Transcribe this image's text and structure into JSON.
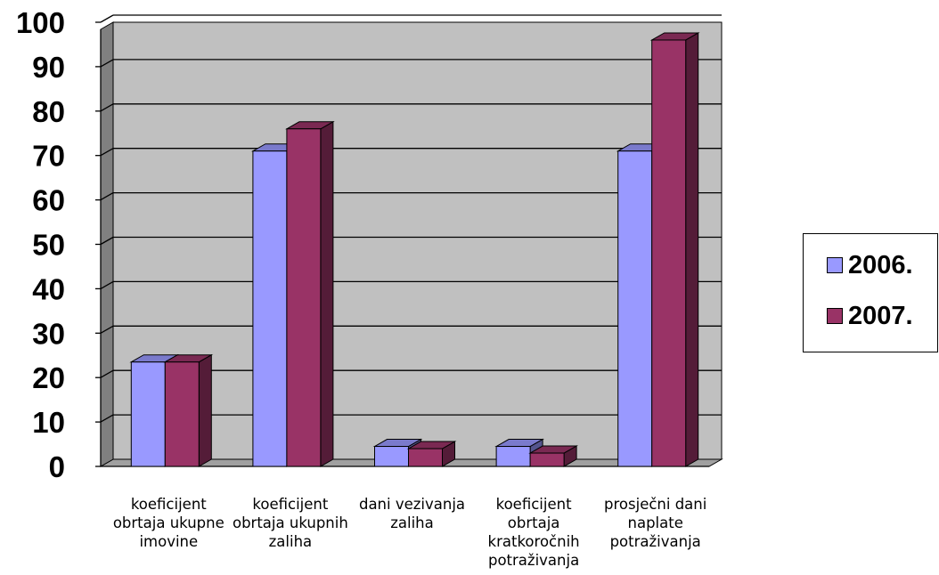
{
  "chart_data": {
    "type": "bar",
    "categories": [
      [
        "koeficijent",
        "obrtaja ukupne",
        "imovine"
      ],
      [
        "koeficijent",
        "obrtaja ukupnih",
        "zaliha"
      ],
      [
        "dani vezivanja",
        "zaliha"
      ],
      [
        "koeficijent",
        "obrtaja",
        "kratkoročnih",
        "potraživanja"
      ],
      [
        "prosječni dani",
        "naplate",
        "potraživanja"
      ]
    ],
    "series": [
      {
        "name": "2006.",
        "color": "#9999ff",
        "values": [
          23.5,
          71,
          4.5,
          4.5,
          71
        ]
      },
      {
        "name": "2007.",
        "color": "#993366",
        "values": [
          23.5,
          76,
          4,
          3,
          96
        ]
      }
    ],
    "yticks": [
      "0",
      "10",
      "20",
      "30",
      "40",
      "50",
      "60",
      "70",
      "80",
      "90",
      "100"
    ],
    "ylim": [
      0,
      100
    ],
    "grid": true,
    "plot_background": "#c0c0c0",
    "legend_position": "right"
  }
}
